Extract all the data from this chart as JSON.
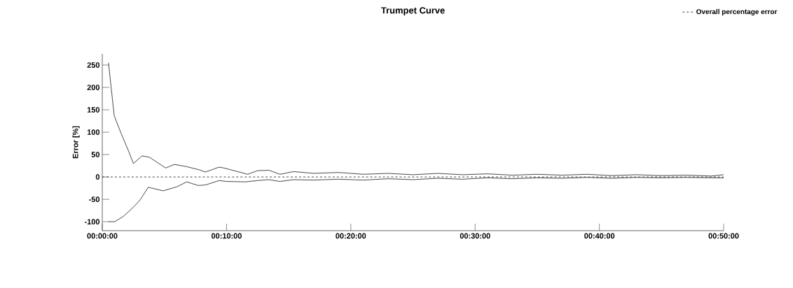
{
  "chart_data": {
    "type": "line",
    "title": "Trumpet Curve",
    "ylabel": "Error [%]",
    "xlim": [
      0,
      0.8333
    ],
    "ylim": [
      -120,
      275
    ],
    "xticks": [
      {
        "value": 0,
        "label": "00:00:00"
      },
      {
        "value": 0.1667,
        "label": "00:10:00"
      },
      {
        "value": 0.3333,
        "label": "00:20:00"
      },
      {
        "value": 0.5,
        "label": "00:30:00"
      },
      {
        "value": 0.6667,
        "label": "00:40:00"
      },
      {
        "value": 0.8333,
        "label": "00:50:00"
      }
    ],
    "yticks": [
      -100,
      -50,
      0,
      50,
      100,
      150,
      200,
      250
    ],
    "legend": "top right",
    "series": [
      {
        "color": "#333333",
        "line_style": "solid",
        "x": [
          0.0083,
          0.016,
          0.025,
          0.035,
          0.0417,
          0.0533,
          0.0633,
          0.085,
          0.0967,
          0.1133,
          0.13,
          0.1383,
          0.1567,
          0.1633,
          0.195,
          0.2083,
          0.2233,
          0.2383,
          0.2567,
          0.2833,
          0.3167,
          0.35,
          0.3833,
          0.4167,
          0.45,
          0.4833,
          0.5167,
          0.55,
          0.5833,
          0.6167,
          0.65,
          0.6833,
          0.7167,
          0.75,
          0.7833,
          0.8167,
          0.8333
        ],
        "values": [
          255,
          137,
          98,
          59,
          30,
          47,
          44,
          20,
          28,
          23,
          16,
          11,
          22,
          20,
          6,
          14,
          15,
          6,
          12,
          8,
          10,
          6,
          8,
          5,
          8,
          5,
          7,
          4,
          6,
          4,
          6,
          3,
          5,
          3,
          4,
          2,
          5
        ]
      },
      {
        "color": "#333333",
        "line_style": "solid",
        "x": [
          0.0083,
          0.0167,
          0.0283,
          0.0383,
          0.05,
          0.0617,
          0.0817,
          0.1,
          0.1133,
          0.1283,
          0.1383,
          0.1567,
          0.1667,
          0.1917,
          0.2083,
          0.2233,
          0.2383,
          0.2567,
          0.2833,
          0.3167,
          0.35,
          0.3833,
          0.4167,
          0.45,
          0.4833,
          0.5167,
          0.55,
          0.5833,
          0.6167,
          0.65,
          0.6833,
          0.7167,
          0.75,
          0.7833,
          0.8167,
          0.8333
        ],
        "values": [
          -100,
          -100,
          -88,
          -73,
          -53,
          -23,
          -31,
          -22,
          -11,
          -19,
          -18,
          -8,
          -10,
          -11,
          -8,
          -6,
          -10,
          -6,
          -7,
          -5,
          -7,
          -4,
          -6,
          -3,
          -5,
          -2,
          -4,
          -2,
          -3,
          -1,
          -3,
          -1,
          -2,
          -1,
          -2,
          -2
        ]
      },
      {
        "name": "Overall percentage error",
        "color": "#333333",
        "line_style": "dashed",
        "x": [
          0,
          0.8333
        ],
        "values": [
          0,
          0
        ]
      }
    ]
  }
}
